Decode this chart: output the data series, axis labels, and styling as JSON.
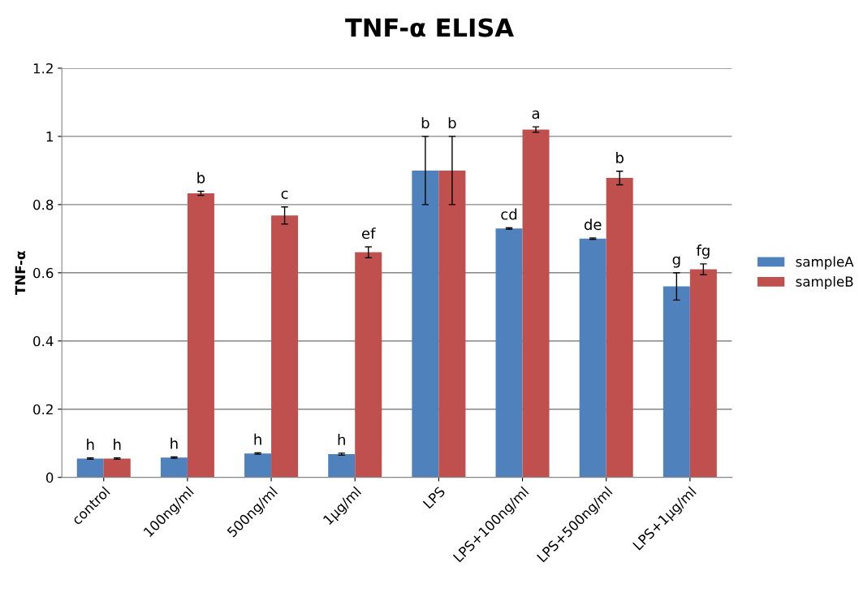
{
  "chart_data": {
    "type": "bar",
    "title": "TNF-α ELISA",
    "ylabel": "TNF-α",
    "categories": [
      "control",
      "100ng/ml",
      "500ng/ml",
      "1μg/ml",
      "LPS",
      "LPS+100ng/ml",
      "LPS+500ng/ml",
      "LPS+1μg/ml"
    ],
    "series": [
      {
        "name": "sampleA",
        "color": "#4f81bd",
        "values": [
          0.055,
          0.058,
          0.07,
          0.068,
          0.9,
          0.73,
          0.7,
          0.56
        ],
        "errors": [
          0.002,
          0.002,
          0.002,
          0.003,
          0.1,
          0.002,
          0.002,
          0.04
        ],
        "value_labels": [
          "h",
          "h",
          "h",
          "h",
          "b",
          "cd",
          "de",
          "g"
        ]
      },
      {
        "name": "sampleB",
        "color": "#c0504d",
        "values": [
          0.055,
          0.833,
          0.768,
          0.66,
          0.9,
          1.02,
          0.878,
          0.61
        ],
        "errors": [
          0.002,
          0.006,
          0.025,
          0.016,
          0.1,
          0.008,
          0.02,
          0.016
        ],
        "value_labels": [
          "h",
          "b",
          "c",
          "ef",
          "b",
          "a",
          "b",
          "fg"
        ]
      }
    ],
    "ylim": [
      0,
      1.2
    ],
    "yticks": [
      0,
      0.2,
      0.4,
      0.6,
      0.8,
      1,
      1.2
    ],
    "grid": "y",
    "legend": "right"
  }
}
